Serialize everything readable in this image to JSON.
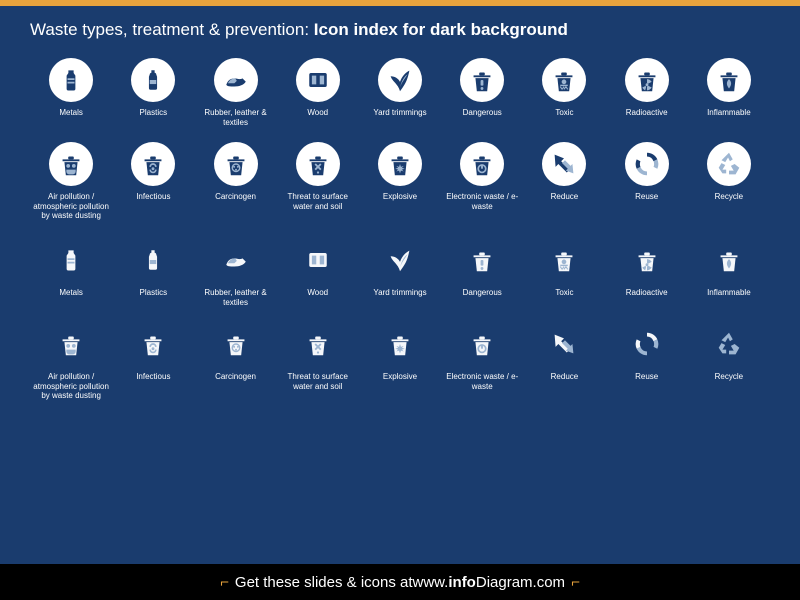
{
  "title_prefix": "Waste types, treatment & prevention: ",
  "title_bold": "Icon index for dark background",
  "footer_a": "Get these slides & icons at ",
  "footer_b": "www.",
  "footer_c": "info",
  "footer_d": "Diagram",
  "footer_e": ".com",
  "colors": {
    "bg": "#1a3c6e",
    "accent": "#e8a33d",
    "icon_dark": "#1a3c6e",
    "icon_light": "#9db5d1",
    "icon_white": "#f5f7fa"
  },
  "icons": [
    {
      "id": "metals",
      "label": "Metals"
    },
    {
      "id": "plastics",
      "label": "Plastics"
    },
    {
      "id": "rubber",
      "label": "Rubber, leather & textiles"
    },
    {
      "id": "wood",
      "label": "Wood"
    },
    {
      "id": "yard",
      "label": "Yard trimmings"
    },
    {
      "id": "dangerous",
      "label": "Dangerous"
    },
    {
      "id": "toxic",
      "label": "Toxic"
    },
    {
      "id": "radioactive",
      "label": "Radioactive"
    },
    {
      "id": "inflammable",
      "label": "Inflammable"
    },
    {
      "id": "air",
      "label": "Air pollution / atmospheric pollution by waste dusting"
    },
    {
      "id": "infectious",
      "label": "Infectious"
    },
    {
      "id": "carcinogen",
      "label": "Carcinogen"
    },
    {
      "id": "threat",
      "label": "Threat to surface water and soil"
    },
    {
      "id": "explosive",
      "label": "Explosive"
    },
    {
      "id": "ewaste",
      "label": "Electronic waste / e-waste"
    },
    {
      "id": "reduce",
      "label": "Reduce"
    },
    {
      "id": "reuse",
      "label": "Reuse"
    },
    {
      "id": "recycle",
      "label": "Recycle"
    }
  ]
}
